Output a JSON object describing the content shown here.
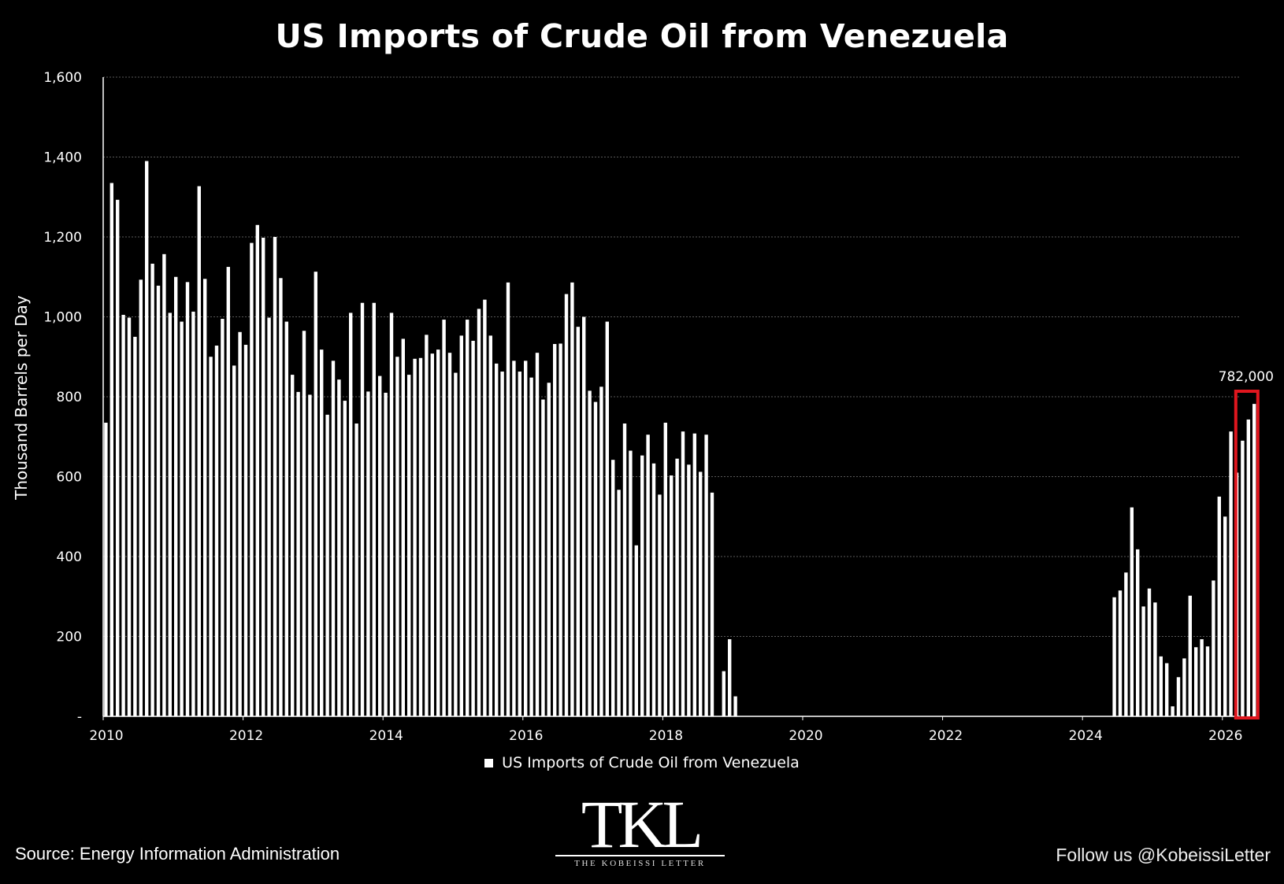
{
  "page": {
    "title": "US Imports of Crude Oil from Venezuela",
    "source": "Source: Energy Information Administration",
    "follow": "Follow us @KobeissiLetter"
  },
  "logo": {
    "mark": "TKL",
    "subtitle": "THE KOBEISSI LETTER"
  },
  "colors": {
    "background": "#000000",
    "bars": "#ffffff",
    "highlight": "#e0161e",
    "grid": "#5a5a5a"
  },
  "chart_data": {
    "type": "bar",
    "title": "US Imports of Crude Oil from Venezuela",
    "ylabel": "Thousand Barrels per Day",
    "xlabel": "",
    "ylim": [
      0,
      1600
    ],
    "y_ticks": [
      0,
      200,
      400,
      600,
      800,
      1000,
      1200,
      1400,
      1600
    ],
    "y_tick_labels": [
      "-",
      "200",
      "400",
      "600",
      "800",
      "1,000",
      "1,200",
      "1,400",
      "1,600"
    ],
    "x_tick_labels": [
      "2010",
      "2012",
      "2014",
      "2016",
      "2018",
      "2020",
      "2022",
      "2024",
      "2026"
    ],
    "legend": {
      "label": "US Imports of Crude Oil from Venezuela",
      "placement": "bottom-center"
    },
    "grid": true,
    "series": [
      {
        "name": "US Imports of Crude Oil from Venezuela",
        "start": "2010-01",
        "frequency": "monthly",
        "values": [
          735,
          1335,
          1293,
          1005,
          998,
          950,
          1093,
          1390,
          1133,
          1078,
          1157,
          1010,
          1100,
          988,
          1087,
          1013,
          1327,
          1095,
          900,
          928,
          995,
          1125,
          878,
          962,
          930,
          1185,
          1230,
          1198,
          998,
          1200,
          1097,
          988,
          855,
          812,
          965,
          805,
          1113,
          918,
          755,
          890,
          843,
          790,
          1010,
          733,
          1035,
          813,
          1035,
          852,
          810,
          1010,
          900,
          945,
          855,
          895,
          897,
          955,
          908,
          918,
          993,
          910,
          860,
          953,
          993,
          940,
          1020,
          1043,
          953,
          883,
          863,
          1086,
          890,
          863,
          890,
          848,
          910,
          793,
          835,
          932,
          933,
          1057,
          1086,
          975,
          1000,
          815,
          787,
          825,
          988,
          642,
          567,
          733,
          665,
          428,
          653,
          705,
          633,
          555,
          735,
          603,
          645,
          713,
          630,
          708,
          612,
          705,
          560,
          0,
          113,
          193,
          50,
          0,
          0,
          0,
          0,
          0,
          0,
          0,
          0,
          0,
          0,
          0,
          0,
          0,
          0,
          0,
          0,
          0,
          0,
          0,
          0,
          0,
          0,
          0,
          0,
          0,
          0,
          0,
          0,
          0,
          0,
          0,
          0,
          0,
          0,
          0,
          0,
          0,
          0,
          0,
          0,
          0,
          0,
          0,
          0,
          0,
          0,
          0,
          0,
          0,
          0,
          0,
          0,
          0,
          0,
          0,
          0,
          0,
          0,
          0,
          0,
          0,
          0,
          0,
          0,
          298,
          315,
          360,
          523,
          418,
          275,
          320,
          285,
          150,
          133,
          25,
          98,
          145,
          302,
          173,
          193,
          175,
          340,
          550,
          500,
          713,
          610,
          690,
          743,
          782
        ]
      }
    ],
    "annotations": [
      {
        "date": "2026-05",
        "text": "782,000",
        "highlight": true
      }
    ]
  }
}
